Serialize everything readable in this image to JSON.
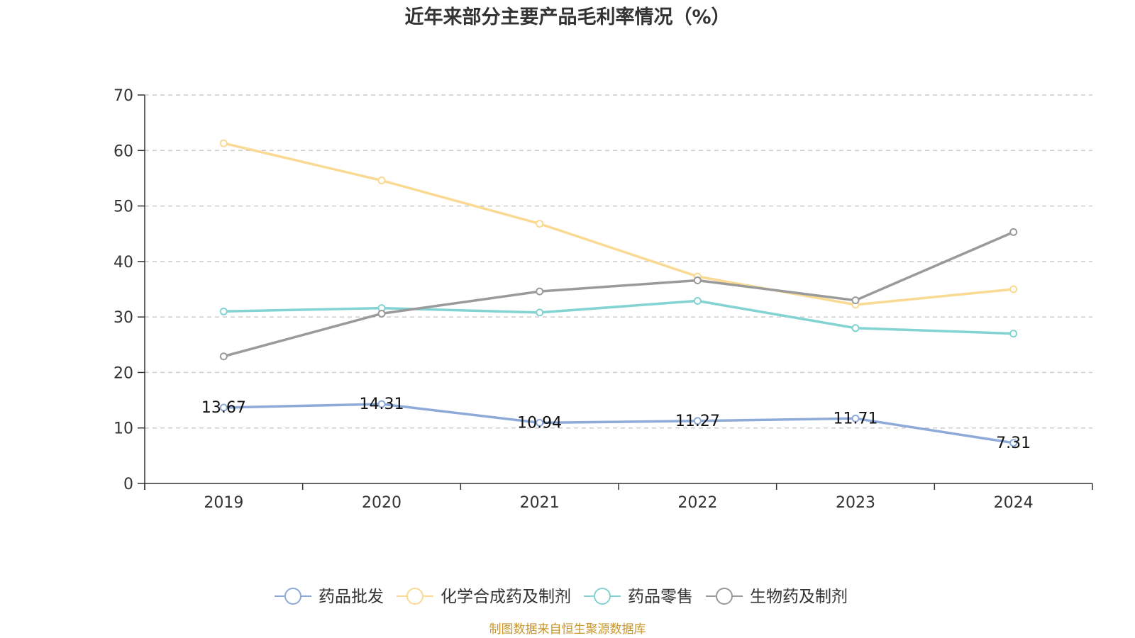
{
  "chart_data": {
    "type": "line",
    "title": "近年来部分主要产品毛利率情况（%）",
    "xlabel": "",
    "ylabel": "",
    "categories": [
      "2019",
      "2020",
      "2021",
      "2022",
      "2023",
      "2024"
    ],
    "ylim": [
      0,
      70
    ],
    "yticks": [
      0,
      10,
      20,
      30,
      40,
      50,
      60,
      70
    ],
    "grid": true,
    "legend_position": "bottom",
    "series": [
      {
        "name": "药品批发",
        "color": "#8eaad8",
        "values": [
          13.67,
          14.31,
          10.94,
          11.27,
          11.71,
          7.31
        ],
        "labels": [
          "13.67",
          "14.31",
          "10.94",
          "11.27",
          "11.71",
          "7.31"
        ]
      },
      {
        "name": "化学合成药及制剂",
        "color": "#fad993",
        "values": [
          61.3,
          54.6,
          46.8,
          37.3,
          32.2,
          35.0
        ]
      },
      {
        "name": "药品零售",
        "color": "#82d3d2",
        "values": [
          31.0,
          31.6,
          30.8,
          32.9,
          28.0,
          27.0
        ]
      },
      {
        "name": "生物药及制剂",
        "color": "#9a9a9a",
        "values": [
          22.9,
          30.6,
          34.6,
          36.6,
          33.0,
          45.3
        ]
      }
    ],
    "source": "制图数据来自恒生聚源数据库"
  }
}
